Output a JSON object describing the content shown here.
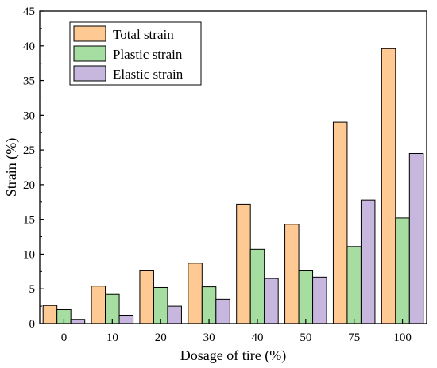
{
  "chart_data": {
    "type": "bar",
    "xlabel": "Dosage of tire (%)",
    "ylabel": "Strain (%)",
    "ylim": [
      0,
      45
    ],
    "yticks": [
      "0",
      "5",
      "10",
      "15",
      "20",
      "25",
      "30",
      "35",
      "40",
      "45"
    ],
    "categories": [
      "0",
      "10",
      "20",
      "30",
      "40",
      "50",
      "75",
      "100"
    ],
    "series": [
      {
        "name": "Total strain",
        "color": "#FFC993",
        "values": [
          2.6,
          5.4,
          7.6,
          8.7,
          17.2,
          14.3,
          29.0,
          39.6
        ]
      },
      {
        "name": "Plastic strain",
        "color": "#A6DDA0",
        "values": [
          2.0,
          4.2,
          5.2,
          5.3,
          10.7,
          7.6,
          11.1,
          15.2
        ]
      },
      {
        "name": "Elastic strain",
        "color": "#C7B7DE",
        "values": [
          0.6,
          1.2,
          2.5,
          3.5,
          6.5,
          6.7,
          17.8,
          24.5
        ]
      }
    ],
    "grid": false,
    "legend_position": "top-left"
  }
}
